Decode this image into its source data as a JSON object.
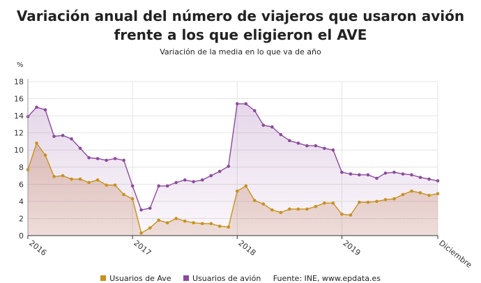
{
  "title": "Variación anual del número de viajeros que usaron avión frente a los que eligieron el AVE",
  "subtitle": "Variación de la media en lo que va de año",
  "source": "Fuente: INE, www.epdata.es",
  "colors": {
    "ave": "#c8911d",
    "avion": "#8c4a9e",
    "grid": "#e4e4e4"
  },
  "chart_data": {
    "type": "area",
    "ylabel": "%",
    "ylim": [
      0,
      18
    ],
    "yticks": [
      0,
      2,
      4,
      6,
      8,
      10,
      12,
      14,
      16,
      18
    ],
    "xtick_labels": [
      {
        "label": "2016",
        "index": 0
      },
      {
        "label": "2017",
        "index": 12
      },
      {
        "label": "2018",
        "index": 24
      },
      {
        "label": "2019",
        "index": 36
      },
      {
        "label": "Diciembre",
        "index": 47
      }
    ],
    "series": [
      {
        "name": "Usuarios de Ave",
        "key": "ave",
        "values": [
          7.7,
          10.8,
          9.4,
          6.9,
          7.0,
          6.6,
          6.6,
          6.2,
          6.5,
          5.9,
          5.9,
          4.8,
          4.3,
          0.3,
          0.9,
          1.8,
          1.5,
          2.0,
          1.7,
          1.5,
          1.4,
          1.4,
          1.1,
          1.0,
          5.2,
          5.8,
          4.1,
          3.7,
          3.0,
          2.7,
          3.1,
          3.1,
          3.1,
          3.4,
          3.8,
          3.8,
          2.5,
          2.4,
          3.9,
          3.9,
          4.0,
          4.2,
          4.3,
          4.8,
          5.2,
          5.0,
          4.7,
          4.9
        ]
      },
      {
        "name": "Usuarios de avión",
        "key": "avion",
        "values": [
          13.9,
          15.0,
          14.7,
          11.6,
          11.7,
          11.3,
          10.2,
          9.1,
          9.0,
          8.8,
          9.0,
          8.8,
          5.8,
          3.0,
          3.2,
          5.8,
          5.8,
          6.2,
          6.5,
          6.3,
          6.5,
          7.0,
          7.5,
          8.1,
          15.4,
          15.4,
          14.6,
          12.9,
          12.7,
          11.8,
          11.1,
          10.8,
          10.5,
          10.5,
          10.2,
          10.0,
          7.4,
          7.2,
          7.1,
          7.1,
          6.7,
          7.3,
          7.4,
          7.2,
          7.1,
          6.8,
          6.6,
          6.4
        ]
      }
    ]
  }
}
